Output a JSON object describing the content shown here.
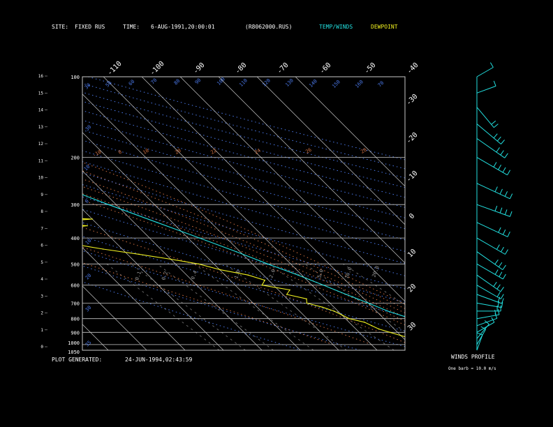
{
  "header": {
    "site_label": "SITE:",
    "site_value": "FIXED RUS",
    "time_label": "TIME:",
    "time_value": "6-AUG-1991,20:00:01",
    "file_value": "(R8062000.RUS)",
    "legend_temp": "TEMP/WINDS",
    "legend_dew": "DEWPOINT"
  },
  "footer": {
    "plot_label": "PLOT GENERATED:",
    "plot_value": "24-JUN-1994,02:43:59"
  },
  "winds_panel": {
    "title": "WINDS PROFILE",
    "note": "One barb = 10.0 m/s"
  },
  "colors": {
    "temp": "#22e0e0",
    "dew": "#f0f020",
    "isotherm": "#c8c8c8",
    "isobar": "#c8c8c8",
    "dry_adiabat": "#4a78e8",
    "moist_adiabat": "#d07040",
    "mixing_ratio": "#7a7a7a",
    "text": "#ffffff"
  },
  "chart_data": {
    "type": "line",
    "subtype": "skew-T log-P sounding",
    "pressure_ticks": [
      "100",
      "200",
      "300",
      "400",
      "500",
      "600",
      "700",
      "800",
      "900",
      "1000",
      "1050"
    ],
    "height_ticks_km": [
      "16",
      "15",
      "14",
      "13",
      "12",
      "11",
      "10",
      "9",
      "8",
      "7",
      "6",
      "5",
      "4",
      "3",
      "2",
      "1",
      "0"
    ],
    "temp_ticks_top": [
      "-110",
      "-100",
      "-90",
      "-80",
      "-70",
      "-60",
      "-50",
      "-40"
    ],
    "temp_ticks_right": [
      "-30",
      "-20",
      "-10",
      "0",
      "10",
      "20",
      "30"
    ],
    "dry_adiabat_labels": [
      "30",
      "50",
      "60",
      "70",
      "80",
      "90",
      "100",
      "110",
      "120",
      "130",
      "140",
      "150",
      "160",
      "70",
      "10",
      "0"
    ],
    "moist_adiabat_labels": [
      "-10",
      "0",
      "10",
      "20",
      "22",
      "24",
      "26",
      "28"
    ],
    "mixing_ratio_labels": [
      "0.1",
      "0.2",
      "0.4",
      "1.0",
      "2.0",
      "5.0",
      "10.0",
      "20.0"
    ],
    "series": [
      {
        "name": "TEMP/WINDS",
        "points": [
          [
            1000,
            34
          ],
          [
            975,
            31
          ],
          [
            950,
            28
          ],
          [
            925,
            25
          ],
          [
            900,
            23
          ],
          [
            850,
            20
          ],
          [
            800,
            17
          ],
          [
            750,
            13
          ],
          [
            700,
            10
          ],
          [
            650,
            6.5
          ],
          [
            600,
            3
          ],
          [
            550,
            -1
          ],
          [
            500,
            -6
          ],
          [
            450,
            -11
          ],
          [
            400,
            -17
          ],
          [
            350,
            -24
          ],
          [
            300,
            -32
          ],
          [
            250,
            -41
          ],
          [
            220,
            -47
          ],
          [
            200,
            -52
          ],
          [
            180,
            -56
          ],
          [
            160,
            -62
          ],
          [
            150,
            -64
          ],
          [
            130,
            -67
          ],
          [
            115,
            -66
          ],
          [
            108,
            -64
          ],
          [
            100,
            -62
          ]
        ]
      },
      {
        "name": "DEWPOINT",
        "points": [
          [
            1000,
            14
          ],
          [
            975,
            13
          ],
          [
            950,
            12
          ],
          [
            925,
            10
          ],
          [
            900,
            8
          ],
          [
            875,
            6
          ],
          [
            850,
            5
          ],
          [
            825,
            4
          ],
          [
            800,
            1
          ],
          [
            775,
            0
          ],
          [
            750,
            -1
          ],
          [
            725,
            -3
          ],
          [
            700,
            -6
          ],
          [
            675,
            -5
          ],
          [
            650,
            -9
          ],
          [
            625,
            -7
          ],
          [
            600,
            -13
          ],
          [
            575,
            -11
          ],
          [
            550,
            -14
          ],
          [
            525,
            -20
          ],
          [
            500,
            -24
          ],
          [
            480,
            -30
          ],
          [
            460,
            -37
          ],
          [
            440,
            -45
          ],
          [
            420,
            -52
          ],
          [
            400,
            -57
          ],
          [
            390,
            -49
          ],
          [
            375,
            -56
          ],
          [
            360,
            -43
          ],
          [
            350,
            -55
          ],
          [
            340,
            -40
          ],
          [
            330,
            -60
          ],
          [
            320,
            -48
          ],
          [
            310,
            -62
          ],
          [
            300,
            -52
          ],
          [
            290,
            -60
          ],
          [
            275,
            -58
          ],
          [
            260,
            -62
          ],
          [
            245,
            -68
          ],
          [
            230,
            -73
          ],
          [
            215,
            -77
          ],
          [
            200,
            -80
          ]
        ]
      }
    ],
    "winds": [
      {
        "p": 1050,
        "dir": 200,
        "spd": 6
      },
      {
        "p": 1000,
        "dir": 210,
        "spd": 8
      },
      {
        "p": 950,
        "dir": 220,
        "spd": 10
      },
      {
        "p": 900,
        "dir": 240,
        "spd": 12
      },
      {
        "p": 850,
        "dir": 250,
        "spd": 14
      },
      {
        "p": 800,
        "dir": 260,
        "spd": 16
      },
      {
        "p": 750,
        "dir": 270,
        "spd": 18
      },
      {
        "p": 700,
        "dir": 280,
        "spd": 20
      },
      {
        "p": 650,
        "dir": 290,
        "spd": 22
      },
      {
        "p": 600,
        "dir": 300,
        "spd": 24
      },
      {
        "p": 550,
        "dir": 305,
        "spd": 26
      },
      {
        "p": 500,
        "dir": 300,
        "spd": 28
      },
      {
        "p": 450,
        "dir": 305,
        "spd": 30
      },
      {
        "p": 400,
        "dir": 300,
        "spd": 32
      },
      {
        "p": 350,
        "dir": 295,
        "spd": 34
      },
      {
        "p": 300,
        "dir": 290,
        "spd": 36
      },
      {
        "p": 250,
        "dir": 295,
        "spd": 38
      },
      {
        "p": 200,
        "dir": 300,
        "spd": 36
      },
      {
        "p": 170,
        "dir": 305,
        "spd": 34
      },
      {
        "p": 150,
        "dir": 310,
        "spd": 30
      },
      {
        "p": 130,
        "dir": 320,
        "spd": 22
      },
      {
        "p": 115,
        "dir": 250,
        "spd": 12
      },
      {
        "p": 100,
        "dir": 240,
        "spd": 10
      }
    ]
  }
}
